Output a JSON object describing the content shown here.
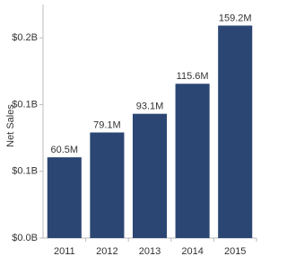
{
  "chart_data": {
    "type": "bar",
    "y_label": "Net Sales",
    "categories": [
      "2011",
      "2012",
      "2013",
      "2014",
      "2015"
    ],
    "values": [
      60500000,
      79100000,
      93100000,
      115600000,
      159200000
    ],
    "value_labels": [
      "60.5M",
      "79.1M",
      "93.1M",
      "115.6M",
      "159.2M"
    ],
    "color": "#2b4673",
    "ylim": [
      0,
      175000000
    ],
    "yticks": [
      {
        "value": 0,
        "label": "$0.0B"
      },
      {
        "value": 50000000,
        "label": "$0.1B"
      },
      {
        "value": 100000000,
        "label": "$0.1B"
      },
      {
        "value": 150000000,
        "label": "$0.2B"
      }
    ],
    "grid": false
  }
}
